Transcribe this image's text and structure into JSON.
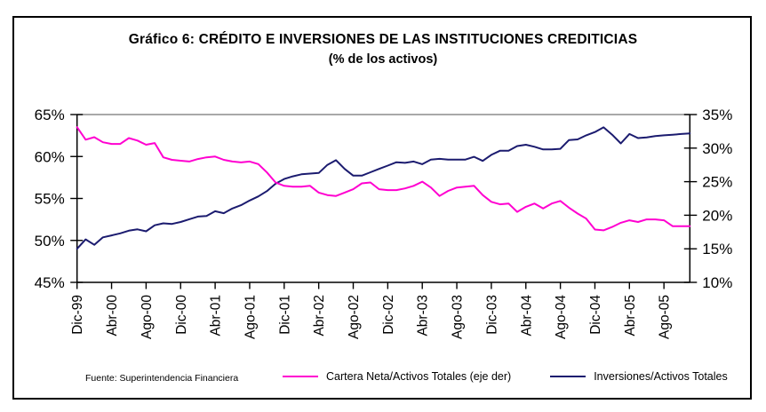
{
  "header": {
    "title": "Gráfico 6: CRÉDITO E INVERSIONES DE LAS INSTITUCIONES CREDITICIAS",
    "subtitle": "(% de los activos)"
  },
  "source_note": "Fuente: Superintendencia Financiera",
  "legend": [
    {
      "label": "Cartera Neta/Activos Totales (eje der)",
      "color": "#ff00d0"
    },
    {
      "label": "Inversiones/Activos Totales",
      "color": "#1b1b6f"
    }
  ],
  "colors": {
    "cartera_line": "#ff00d0",
    "inversiones_line": "#1b1b6f",
    "axis": "#000000",
    "top_gridline": "#8c8c8c",
    "frame_border": "#000000"
  },
  "chart_data": {
    "type": "line",
    "title": "Gráfico 6: CRÉDITO E INVERSIONES DE LAS INSTITUCIONES CREDITICIAS",
    "subtitle": "(% de los activos)",
    "source": "Fuente: Superintendencia Financiera",
    "legend_position": "bottom",
    "grid": "top boundary line only (gray)",
    "x_tick_labels": [
      "Dic-99",
      "Abr-00",
      "Ago-00",
      "Dic-00",
      "Abr-01",
      "Ago-01",
      "Dic-01",
      "Abr-02",
      "Ago-02",
      "Dic-02",
      "Abr-03",
      "Ago-03",
      "Dic-03",
      "Abr-04",
      "Ago-04",
      "Dic-04",
      "Abr-05",
      "Ago-05"
    ],
    "x_tick_every_n_months": 4,
    "x": [
      "Dic-99",
      "Ene-00",
      "Feb-00",
      "Mar-00",
      "Abr-00",
      "May-00",
      "Jun-00",
      "Jul-00",
      "Ago-00",
      "Sep-00",
      "Oct-00",
      "Nov-00",
      "Dic-00",
      "Ene-01",
      "Feb-01",
      "Mar-01",
      "Abr-01",
      "May-01",
      "Jun-01",
      "Jul-01",
      "Ago-01",
      "Sep-01",
      "Oct-01",
      "Nov-01",
      "Dic-01",
      "Ene-02",
      "Feb-02",
      "Mar-02",
      "Abr-02",
      "May-02",
      "Jun-02",
      "Jul-02",
      "Ago-02",
      "Sep-02",
      "Oct-02",
      "Nov-02",
      "Dic-02",
      "Ene-03",
      "Feb-03",
      "Mar-03",
      "Abr-03",
      "May-03",
      "Jun-03",
      "Jul-03",
      "Ago-03",
      "Sep-03",
      "Oct-03",
      "Nov-03",
      "Dic-03",
      "Ene-04",
      "Feb-04",
      "Mar-04",
      "Abr-04",
      "May-04",
      "Jun-04",
      "Jul-04",
      "Ago-04",
      "Sep-04",
      "Oct-04",
      "Nov-04",
      "Dic-04",
      "Ene-05",
      "Feb-05",
      "Mar-05",
      "Abr-05",
      "May-05",
      "Jun-05",
      "Jul-05",
      "Ago-05",
      "Sep-05",
      "Oct-05",
      "Nov-05"
    ],
    "left_axis": {
      "min": 45,
      "max": 65,
      "tick_step": 5,
      "ticks": [
        "65%",
        "60%",
        "55%",
        "50%",
        "45%"
      ]
    },
    "right_axis": {
      "min": 10,
      "max": 35,
      "tick_step": 5,
      "ticks": [
        "35%",
        "30%",
        "25%",
        "20%",
        "15%",
        "10%"
      ]
    },
    "series": [
      {
        "name": "Cartera Neta/Activos Totales (eje der)",
        "axis": "left",
        "color": "#ff00d0",
        "values": [
          63.5,
          62.0,
          62.3,
          61.7,
          61.5,
          61.5,
          62.2,
          61.9,
          61.4,
          61.6,
          59.9,
          59.6,
          59.5,
          59.4,
          59.7,
          59.9,
          60.0,
          59.6,
          59.4,
          59.3,
          59.4,
          59.1,
          58.1,
          56.9,
          56.5,
          56.4,
          56.4,
          56.5,
          55.7,
          55.4,
          55.3,
          55.7,
          56.1,
          56.8,
          56.9,
          56.1,
          56.0,
          56.0,
          56.2,
          56.5,
          57.0,
          56.3,
          55.3,
          55.9,
          56.3,
          56.4,
          56.5,
          55.4,
          54.6,
          54.3,
          54.4,
          53.4,
          54.0,
          54.4,
          53.8,
          54.4,
          54.7,
          53.9,
          53.2,
          52.6,
          51.3,
          51.2,
          51.6,
          52.1,
          52.4,
          52.2,
          52.5,
          52.5,
          52.4,
          51.7,
          51.7,
          51.7
        ]
      },
      {
        "name": "Inversiones/Activos Totales",
        "axis": "right",
        "color": "#1b1b6f",
        "values": [
          15.0,
          16.4,
          15.6,
          16.7,
          17.0,
          17.3,
          17.7,
          17.9,
          17.6,
          18.5,
          18.8,
          18.7,
          19.0,
          19.4,
          19.8,
          19.9,
          20.6,
          20.3,
          21.0,
          21.5,
          22.2,
          22.8,
          23.6,
          24.7,
          25.4,
          25.8,
          26.1,
          26.2,
          26.3,
          27.5,
          28.2,
          26.9,
          25.9,
          25.9,
          26.4,
          26.9,
          27.4,
          27.9,
          27.8,
          28.0,
          27.6,
          28.3,
          28.4,
          28.3,
          28.3,
          28.3,
          28.7,
          28.1,
          29.0,
          29.6,
          29.6,
          30.3,
          30.5,
          30.2,
          29.8,
          29.8,
          29.9,
          31.2,
          31.3,
          31.9,
          32.4,
          33.1,
          32.0,
          30.7,
          32.1,
          31.5,
          31.6,
          31.8,
          31.9,
          32.0,
          32.1,
          32.2
        ]
      }
    ]
  }
}
